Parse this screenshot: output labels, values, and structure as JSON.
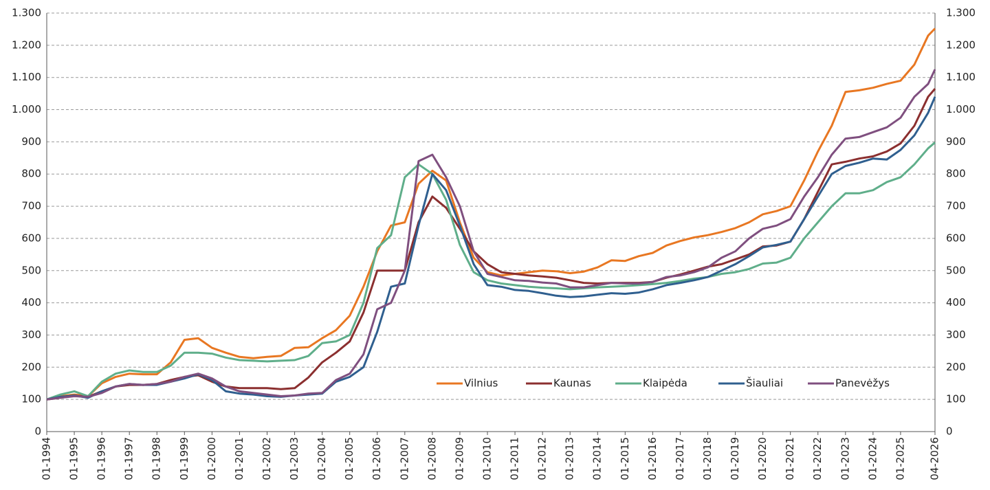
{
  "chart_data": {
    "type": "line",
    "x": [
      1994,
      1994.5,
      1995,
      1995.5,
      1996,
      1996.5,
      1997,
      1997.5,
      1998,
      1998.5,
      1999,
      1999.5,
      2000,
      2000.5,
      2001,
      2001.5,
      2002,
      2002.5,
      2003,
      2003.5,
      2004,
      2004.5,
      2005,
      2005.5,
      2006,
      2006.5,
      2007,
      2007.5,
      2008,
      2008.5,
      2009,
      2009.5,
      2010,
      2010.5,
      2011,
      2011.5,
      2012,
      2012.5,
      2013,
      2013.5,
      2014,
      2014.5,
      2015,
      2015.5,
      2016,
      2016.5,
      2017,
      2017.5,
      2018,
      2018.5,
      2019,
      2019.5,
      2020,
      2020.5,
      2021,
      2021.5,
      2022,
      2022.5,
      2023,
      2023.5,
      2024,
      2024.5,
      2025,
      2025.5,
      2026,
      2026.25
    ],
    "series": [
      {
        "name": "Vilnius",
        "color": "#e87722",
        "values": [
          100,
          110,
          115,
          110,
          150,
          170,
          180,
          178,
          178,
          215,
          285,
          290,
          260,
          245,
          232,
          228,
          232,
          235,
          260,
          262,
          290,
          315,
          360,
          450,
          560,
          640,
          650,
          770,
          810,
          780,
          650,
          540,
          495,
          485,
          490,
          495,
          500,
          498,
          492,
          497,
          510,
          532,
          530,
          545,
          555,
          578,
          592,
          603,
          610,
          620,
          632,
          650,
          675,
          685,
          700,
          780,
          870,
          950,
          1055,
          1060,
          1068,
          1080,
          1090,
          1140,
          1230,
          1252
        ]
      },
      {
        "name": "Kaunas",
        "color": "#8b2f2f",
        "values": [
          100,
          105,
          112,
          108,
          125,
          140,
          145,
          145,
          148,
          160,
          170,
          175,
          155,
          140,
          135,
          135,
          135,
          132,
          135,
          168,
          215,
          245,
          280,
          370,
          500,
          500,
          500,
          650,
          730,
          695,
          630,
          560,
          520,
          495,
          490,
          485,
          482,
          478,
          470,
          462,
          460,
          462,
          462,
          462,
          465,
          478,
          488,
          500,
          512,
          520,
          535,
          550,
          575,
          578,
          590,
          660,
          745,
          830,
          838,
          848,
          855,
          870,
          895,
          950,
          1040,
          1065
        ]
      },
      {
        "name": "Klaipėda",
        "color": "#5fae8a",
        "values": [
          100,
          115,
          125,
          110,
          155,
          180,
          190,
          185,
          185,
          205,
          245,
          245,
          242,
          230,
          222,
          220,
          218,
          220,
          222,
          235,
          275,
          280,
          300,
          400,
          570,
          610,
          790,
          830,
          800,
          720,
          580,
          495,
          470,
          460,
          455,
          450,
          447,
          445,
          442,
          445,
          448,
          450,
          452,
          455,
          458,
          462,
          468,
          475,
          480,
          490,
          495,
          505,
          522,
          525,
          540,
          600,
          650,
          700,
          740,
          740,
          750,
          775,
          790,
          830,
          880,
          898
        ]
      },
      {
        "name": "Šiauliai",
        "color": "#2f5f8f",
        "values": [
          100,
          108,
          112,
          105,
          125,
          140,
          148,
          145,
          145,
          155,
          165,
          178,
          160,
          125,
          118,
          115,
          110,
          108,
          112,
          115,
          118,
          155,
          170,
          200,
          310,
          450,
          460,
          640,
          800,
          750,
          640,
          520,
          455,
          450,
          440,
          437,
          430,
          422,
          418,
          420,
          425,
          430,
          428,
          432,
          442,
          455,
          462,
          470,
          480,
          500,
          520,
          545,
          572,
          580,
          590,
          660,
          730,
          800,
          825,
          835,
          848,
          845,
          875,
          920,
          990,
          1040
        ]
      },
      {
        "name": "Panevėžys",
        "color": "#7f4f7f",
        "values": [
          100,
          105,
          110,
          108,
          120,
          140,
          148,
          145,
          148,
          155,
          170,
          180,
          165,
          140,
          125,
          120,
          115,
          110,
          112,
          118,
          120,
          160,
          180,
          240,
          380,
          400,
          500,
          840,
          860,
          790,
          700,
          560,
          490,
          480,
          470,
          468,
          463,
          460,
          448,
          448,
          455,
          462,
          460,
          460,
          465,
          480,
          485,
          495,
          510,
          540,
          560,
          600,
          630,
          640,
          660,
          730,
          790,
          860,
          910,
          915,
          930,
          945,
          975,
          1040,
          1080,
          1125
        ]
      }
    ],
    "xlim": [
      1994,
      2026.25
    ],
    "xticks": [
      {
        "value": 1994,
        "label": "01-1994"
      },
      {
        "value": 1995,
        "label": "01-1995"
      },
      {
        "value": 1996,
        "label": "01-1996"
      },
      {
        "value": 1997,
        "label": "01-1997"
      },
      {
        "value": 1998,
        "label": "01-1998"
      },
      {
        "value": 1999,
        "label": "01-1999"
      },
      {
        "value": 2000,
        "label": "01-2000"
      },
      {
        "value": 2001,
        "label": "01-2001"
      },
      {
        "value": 2002,
        "label": "01-2002"
      },
      {
        "value": 2003,
        "label": "01-2003"
      },
      {
        "value": 2004,
        "label": "01-2004"
      },
      {
        "value": 2005,
        "label": "01-2005"
      },
      {
        "value": 2006,
        "label": "01-2006"
      },
      {
        "value": 2007,
        "label": "01-2007"
      },
      {
        "value": 2008,
        "label": "01-2008"
      },
      {
        "value": 2009,
        "label": "01-2009"
      },
      {
        "value": 2010,
        "label": "01-2010"
      },
      {
        "value": 2011,
        "label": "01-2011"
      },
      {
        "value": 2012,
        "label": "01-2012"
      },
      {
        "value": 2013,
        "label": "01-2013"
      },
      {
        "value": 2014,
        "label": "01-2014"
      },
      {
        "value": 2015,
        "label": "01-2015"
      },
      {
        "value": 2016,
        "label": "01-2016"
      },
      {
        "value": 2017,
        "label": "01-2017"
      },
      {
        "value": 2018,
        "label": "01-2018"
      },
      {
        "value": 2019,
        "label": "01-2019"
      },
      {
        "value": 2020,
        "label": "01-2020"
      },
      {
        "value": 2021,
        "label": "01-2021"
      },
      {
        "value": 2022,
        "label": "01-2022"
      },
      {
        "value": 2023,
        "label": "01-2023"
      },
      {
        "value": 2024,
        "label": "01-2024"
      },
      {
        "value": 2025,
        "label": "01-2025"
      },
      {
        "value": 2026.25,
        "label": "04-2026"
      }
    ],
    "ylim": [
      0,
      1300
    ],
    "yticks": [
      0,
      100,
      200,
      300,
      400,
      500,
      600,
      700,
      800,
      900,
      {
        "value": 1000,
        "label": "1.000"
      },
      {
        "value": 1100,
        "label": "1.100"
      },
      {
        "value": 1200,
        "label": "1.200"
      },
      {
        "value": 1300,
        "label": "1.300"
      }
    ],
    "grid": true,
    "legend": "lower-right"
  }
}
